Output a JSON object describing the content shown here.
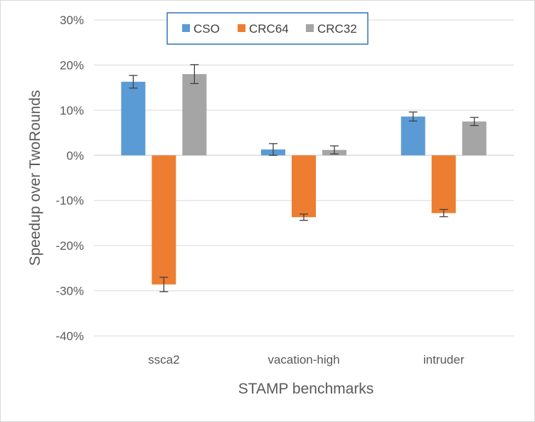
{
  "chart_data": {
    "type": "bar",
    "title": "",
    "xlabel": "STAMP benchmarks",
    "ylabel": "Speedup over TwoRounds",
    "categories": [
      "ssca2",
      "vacation-high",
      "intruder"
    ],
    "ylim": [
      -40,
      30
    ],
    "yticks": [
      30,
      20,
      10,
      0,
      -10,
      -20,
      -30,
      -40
    ],
    "ytick_labels": [
      "30%",
      "20%",
      "10%",
      "0%",
      "-10%",
      "-20%",
      "-30%",
      "-40%"
    ],
    "grid": true,
    "legend_position": "top-center",
    "series": [
      {
        "name": "CSO",
        "color": "#5b9bd5",
        "values": [
          16.3,
          1.3,
          8.6
        ],
        "error": [
          1.4,
          1.3,
          1.0
        ]
      },
      {
        "name": "CRC64",
        "color": "#ed7d31",
        "values": [
          -28.6,
          -13.7,
          -12.8
        ],
        "error": [
          1.6,
          0.7,
          0.8
        ]
      },
      {
        "name": "CRC32",
        "color": "#a5a5a5",
        "values": [
          18.0,
          1.2,
          7.5
        ],
        "error": [
          2.1,
          0.9,
          0.9
        ]
      }
    ]
  }
}
